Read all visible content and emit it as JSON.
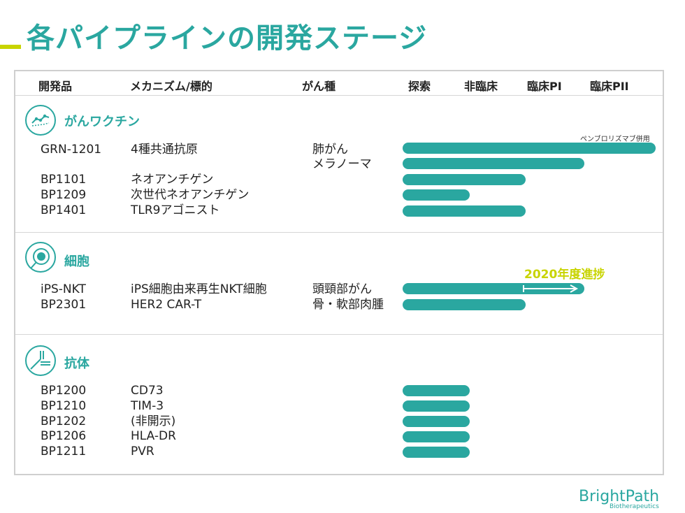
{
  "title": "各パイプラインの開発ステージ",
  "headers": {
    "product": "開発品",
    "mechanism": "メカニズム/標的",
    "cancer": "がん種",
    "stages": [
      "探索",
      "非臨床",
      "臨床PI",
      "臨床PII"
    ]
  },
  "sections": [
    {
      "label": "がんワクチン",
      "icon": "vaccine-icon",
      "rows": [
        {
          "product": "GRN-1201",
          "mechanism": "4種共通抗原",
          "cancer": "肺がん",
          "progress": 1.0
        },
        {
          "product": "",
          "mechanism": "",
          "cancer": "メラノーマ",
          "progress": 0.72
        },
        {
          "product": "BP1101",
          "mechanism": "ネオアンチゲン",
          "cancer": "",
          "progress": 0.49
        },
        {
          "product": "BP1209",
          "mechanism": "次世代ネオアンチゲン",
          "cancer": "",
          "progress": 0.27
        },
        {
          "product": "BP1401",
          "mechanism": "TLR9アゴニスト",
          "cancer": "",
          "progress": 0.49
        }
      ],
      "note": "ペンブロリズマブ併用"
    },
    {
      "label": "細胞",
      "icon": "cell-icon",
      "rows": [
        {
          "product": "iPS-NKT",
          "mechanism": "iPS細胞由来再生NKT細胞",
          "cancer": "頭頸部がん",
          "progress": 0.72
        },
        {
          "product": "BP2301",
          "mechanism": "HER2 CAR-T",
          "cancer": "骨・軟部肉腫",
          "progress": 0.49
        }
      ],
      "progress_label": "2020年度進捗"
    },
    {
      "label": "抗体",
      "icon": "antibody-icon",
      "rows": [
        {
          "product": "BP1200",
          "mechanism": "CD73",
          "cancer": "",
          "progress": 0.27
        },
        {
          "product": "BP1210",
          "mechanism": "TIM-3",
          "cancer": "",
          "progress": 0.27
        },
        {
          "product": "BP1202",
          "mechanism": "(非開示)",
          "cancer": "",
          "progress": 0.27
        },
        {
          "product": "BP1206",
          "mechanism": "HLA-DR",
          "cancer": "",
          "progress": 0.27
        },
        {
          "product": "BP1211",
          "mechanism": "PVR",
          "cancer": "",
          "progress": 0.27
        }
      ]
    }
  ],
  "logo": {
    "name": "BrightPath",
    "sub": "Biotherapeutics"
  },
  "colors": {
    "accent": "#2aa7a0",
    "highlight": "#c8d400"
  }
}
